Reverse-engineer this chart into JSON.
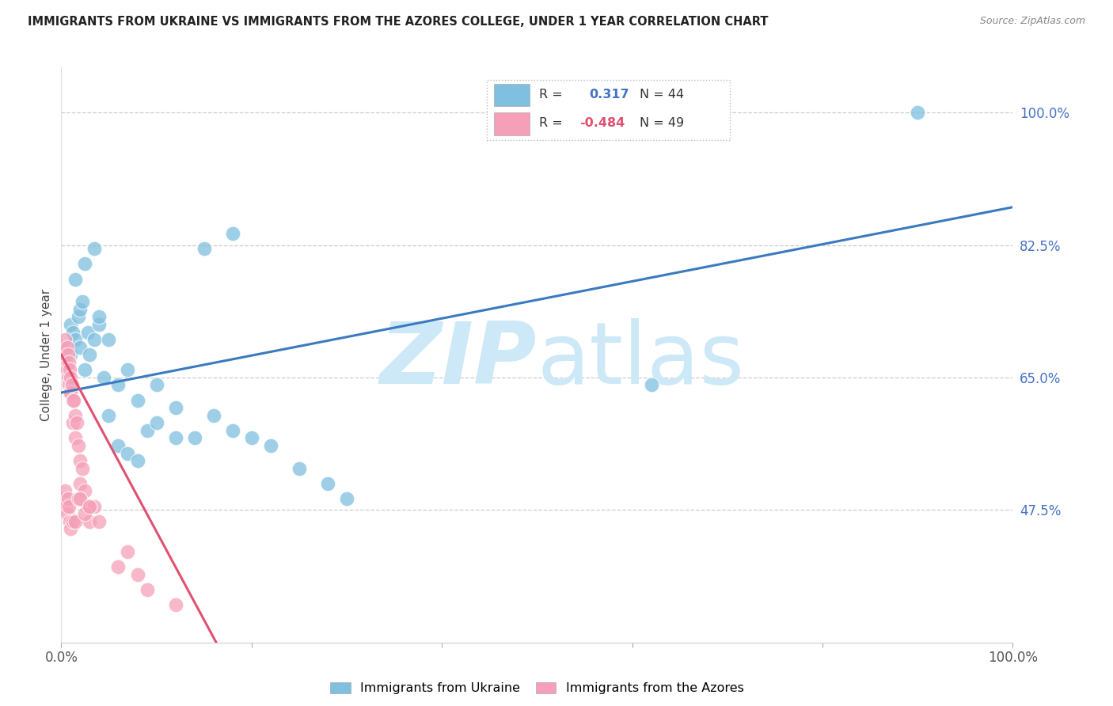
{
  "title": "IMMIGRANTS FROM UKRAINE VS IMMIGRANTS FROM THE AZORES COLLEGE, UNDER 1 YEAR CORRELATION CHART",
  "source": "Source: ZipAtlas.com",
  "ylabel": "College, Under 1 year",
  "xlim": [
    0.0,
    1.0
  ],
  "ylim": [
    0.3,
    1.06
  ],
  "y_ticks_right": [
    0.475,
    0.65,
    0.825,
    1.0
  ],
  "y_tick_labels_right": [
    "47.5%",
    "65.0%",
    "82.5%",
    "100.0%"
  ],
  "ukraine_color": "#7fbfdf",
  "azores_color": "#f5a0b8",
  "ukraine_line_color": "#3a7abf",
  "azores_line_color": "#e05070",
  "watermark_color": "#cde8f7",
  "legend_ukraine_R": "0.317",
  "legend_ukraine_N": "44",
  "legend_azores_R": "-0.484",
  "legend_azores_N": "49",
  "ukraine_line_x0": 0.0,
  "ukraine_line_y0": 0.63,
  "ukraine_line_x1": 1.0,
  "ukraine_line_y1": 0.875,
  "azores_line_x0": 0.0,
  "azores_line_y0": 0.68,
  "azores_line_x1": 0.165,
  "azores_line_y1": 0.295,
  "ukraine_x": [
    0.008,
    0.01,
    0.01,
    0.012,
    0.015,
    0.018,
    0.02,
    0.02,
    0.022,
    0.025,
    0.028,
    0.03,
    0.035,
    0.04,
    0.045,
    0.05,
    0.06,
    0.07,
    0.08,
    0.09,
    0.1,
    0.12,
    0.14,
    0.16,
    0.18,
    0.2,
    0.22,
    0.25,
    0.28,
    0.3,
    0.015,
    0.025,
    0.035,
    0.04,
    0.05,
    0.06,
    0.07,
    0.08,
    0.1,
    0.12,
    0.15,
    0.18,
    0.9,
    0.62
  ],
  "ukraine_y": [
    0.69,
    0.72,
    0.68,
    0.71,
    0.7,
    0.73,
    0.74,
    0.69,
    0.75,
    0.66,
    0.71,
    0.68,
    0.7,
    0.72,
    0.65,
    0.7,
    0.64,
    0.66,
    0.62,
    0.58,
    0.64,
    0.61,
    0.57,
    0.6,
    0.58,
    0.57,
    0.56,
    0.53,
    0.51,
    0.49,
    0.78,
    0.8,
    0.82,
    0.73,
    0.6,
    0.56,
    0.55,
    0.54,
    0.59,
    0.57,
    0.82,
    0.84,
    1.0,
    0.64
  ],
  "azores_x": [
    0.003,
    0.004,
    0.005,
    0.005,
    0.006,
    0.006,
    0.007,
    0.007,
    0.008,
    0.008,
    0.009,
    0.009,
    0.01,
    0.01,
    0.011,
    0.012,
    0.012,
    0.013,
    0.015,
    0.015,
    0.016,
    0.018,
    0.02,
    0.02,
    0.022,
    0.025,
    0.028,
    0.03,
    0.035,
    0.04,
    0.003,
    0.004,
    0.005,
    0.006,
    0.007,
    0.008,
    0.009,
    0.01,
    0.012,
    0.015,
    0.018,
    0.02,
    0.025,
    0.03,
    0.06,
    0.07,
    0.08,
    0.09,
    0.12
  ],
  "azores_y": [
    0.69,
    0.7,
    0.67,
    0.68,
    0.69,
    0.66,
    0.68,
    0.65,
    0.67,
    0.64,
    0.66,
    0.63,
    0.65,
    0.63,
    0.64,
    0.62,
    0.59,
    0.62,
    0.6,
    0.57,
    0.59,
    0.56,
    0.54,
    0.51,
    0.53,
    0.5,
    0.48,
    0.46,
    0.48,
    0.46,
    0.49,
    0.5,
    0.48,
    0.47,
    0.49,
    0.48,
    0.46,
    0.45,
    0.46,
    0.46,
    0.49,
    0.49,
    0.47,
    0.48,
    0.4,
    0.42,
    0.39,
    0.37,
    0.35
  ]
}
